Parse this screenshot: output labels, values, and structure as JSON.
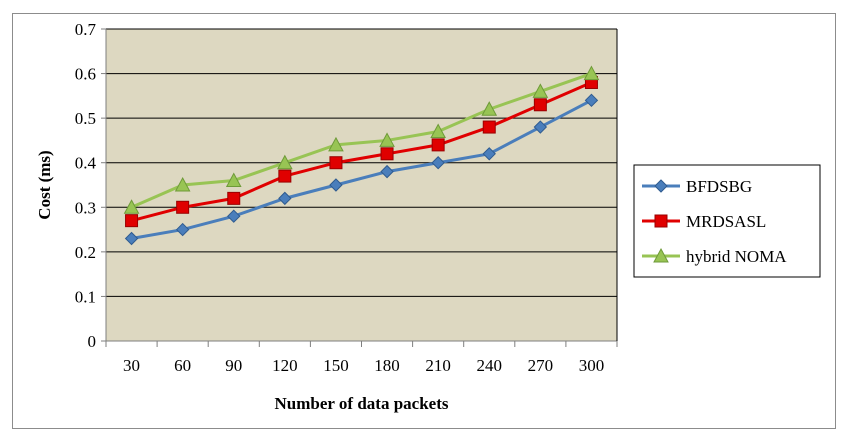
{
  "chart_data": {
    "type": "line",
    "title": "",
    "xlabel": "Number of data packets",
    "ylabel": "Cost (ms)",
    "categories": [
      "30",
      "60",
      "90",
      "120",
      "150",
      "180",
      "210",
      "240",
      "270",
      "300"
    ],
    "ylim": [
      0,
      0.7
    ],
    "yticks": [
      "0",
      "0.1",
      "0.2",
      "0.3",
      "0.4",
      "0.5",
      "0.6",
      "0.7"
    ],
    "grid": true,
    "legend_position": "right",
    "plot_background": "#ddd8c1",
    "series": [
      {
        "name": "BFDSBG",
        "color": "#4a7ebb",
        "marker": "diamond",
        "values": [
          0.23,
          0.25,
          0.28,
          0.32,
          0.35,
          0.38,
          0.4,
          0.42,
          0.48,
          0.54
        ]
      },
      {
        "name": "MRDSASL",
        "color": "#e00000",
        "marker": "square",
        "values": [
          0.27,
          0.3,
          0.32,
          0.37,
          0.4,
          0.42,
          0.44,
          0.48,
          0.53,
          0.58
        ]
      },
      {
        "name": "hybrid NOMA",
        "color": "#98c454",
        "marker": "triangle",
        "values": [
          0.3,
          0.35,
          0.36,
          0.4,
          0.44,
          0.45,
          0.47,
          0.52,
          0.56,
          0.6
        ]
      }
    ]
  }
}
